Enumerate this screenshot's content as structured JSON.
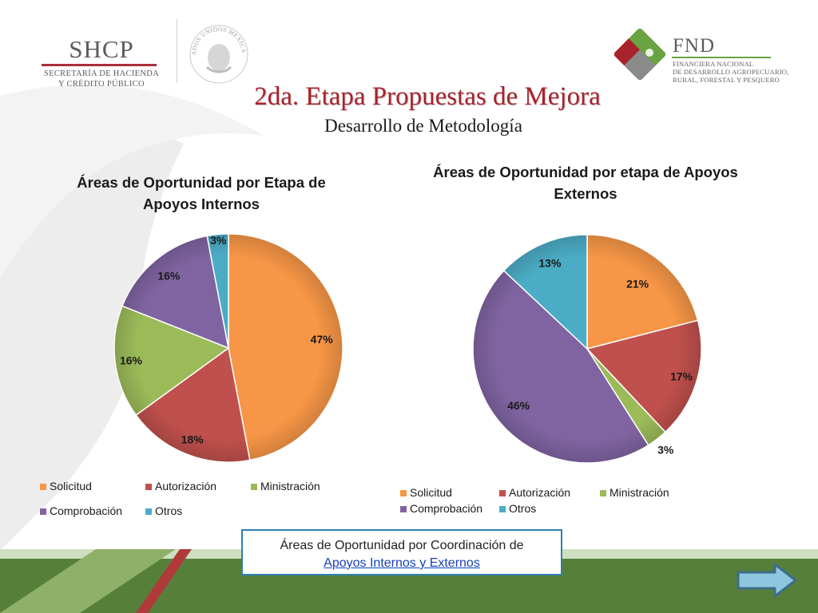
{
  "header": {
    "shcp": {
      "name": "SHCP",
      "sub1": "SECRETARÍA DE HACIENDA",
      "sub2": "Y CRÉDITO PÚBLICO"
    },
    "seal_text": "ESTADOS UNIDOS MEXICANOS",
    "fnd": {
      "name": "FND",
      "sub1": "FINANCIERA NACIONAL",
      "sub2": "DE DESARROLLO AGROPECUARIO,",
      "sub3": "RURAL, FORESTAL Y PESQUERO"
    }
  },
  "slide": {
    "title": "2da. Etapa Propuestas de Mejora",
    "subtitle": "Desarrollo de Metodología"
  },
  "chart_data": [
    {
      "type": "pie",
      "title_lines": [
        "Áreas de Oportunidad por Etapa de",
        "Apoyos Internos"
      ],
      "categories": [
        "Solicitud",
        "Autorización",
        "Ministración",
        "Comprobación",
        "Otros"
      ],
      "values": [
        47,
        18,
        16,
        16,
        3
      ],
      "labels": [
        "47%",
        "18%",
        "16%",
        "16%",
        "3%"
      ],
      "colors": [
        "#f79646",
        "#c0504d",
        "#9bbb59",
        "#8064a2",
        "#4bacc6"
      ],
      "legend_position": "bottom"
    },
    {
      "type": "pie",
      "title_lines": [
        "Áreas de Oportunidad por etapa de Apoyos",
        "Externos"
      ],
      "categories": [
        "Solicitud",
        "Autorización",
        "Ministración",
        "Comprobación",
        "Otros"
      ],
      "values": [
        21,
        17,
        3,
        46,
        13
      ],
      "labels": [
        "21%",
        "17%",
        "3%",
        "46%",
        "13%"
      ],
      "colors": [
        "#f79646",
        "#c0504d",
        "#9bbb59",
        "#8064a2",
        "#4bacc6"
      ],
      "legend_position": "bottom"
    }
  ],
  "link_box": {
    "line1": "Áreas de Oportunidad por Coordinación de",
    "link": "Apoyos Internos y Externos"
  },
  "nav": {
    "next_icon": "right-arrow-icon"
  }
}
